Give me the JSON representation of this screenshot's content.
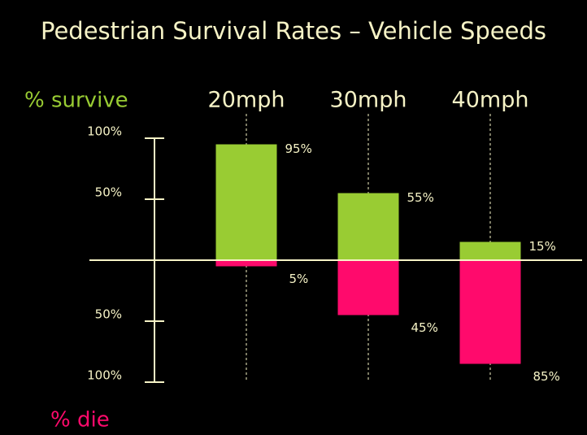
{
  "chart_data": {
    "type": "diverging_bar",
    "title": "Pedestrian Survival Rates – Vehicle Speeds",
    "categories": [
      "20mph",
      "30mph",
      "40mph"
    ],
    "series": [
      {
        "name": "% survive",
        "color": "#99cc33",
        "values": [
          95,
          55,
          15
        ],
        "value_labels": [
          "95%",
          "55%",
          "15%"
        ]
      },
      {
        "name": "% die",
        "color": "#ff0a6c",
        "values": [
          -5,
          -45,
          -85
        ],
        "value_labels": [
          "5%",
          "45%",
          "85%"
        ]
      }
    ],
    "ylim": [
      -100,
      100
    ],
    "yticks": [
      {
        "value": 100,
        "label": "100%"
      },
      {
        "value": 50,
        "label": "50%"
      },
      {
        "value": -50,
        "label": "50%"
      },
      {
        "value": -100,
        "label": "100%"
      }
    ],
    "grid": false
  }
}
